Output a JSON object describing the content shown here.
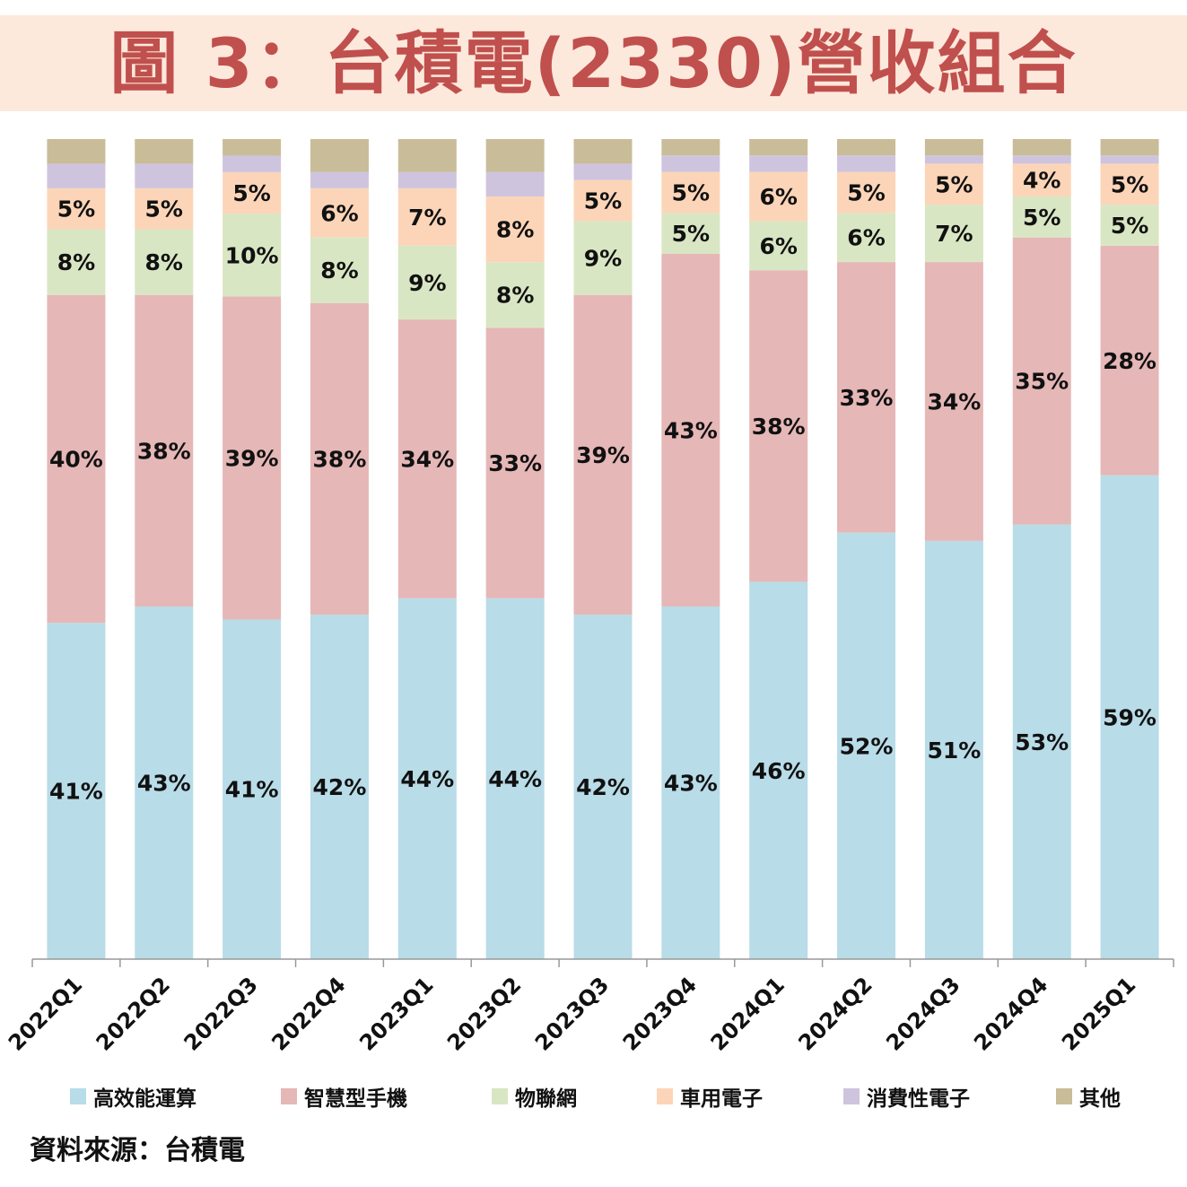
{
  "title": "圖 3：台積電(2330)營收組合",
  "source": "資料來源：台積電",
  "legend": [
    {
      "label": "高效能運算",
      "color": "#b8dce8"
    },
    {
      "label": "智慧型手機",
      "color": "#e6b7b7"
    },
    {
      "label": "物聯網",
      "color": "#d9e6c3"
    },
    {
      "label": "車用電子",
      "color": "#fcd5b8"
    },
    {
      "label": "消費性電子",
      "color": "#cfc4de"
    },
    {
      "label": "其他",
      "color": "#c9bc98"
    }
  ],
  "chart_data": {
    "type": "bar",
    "stacked": true,
    "percent_stacked": true,
    "categories": [
      "2022Q1",
      "2022Q2",
      "2022Q3",
      "2022Q4",
      "2023Q1",
      "2023Q2",
      "2023Q3",
      "2023Q4",
      "2024Q1",
      "2024Q2",
      "2024Q3",
      "2024Q4",
      "2025Q1"
    ],
    "ylim": [
      0,
      100
    ],
    "legend_position": "bottom",
    "series": [
      {
        "name": "高效能運算",
        "color": "#b8dce8",
        "values": [
          41,
          43,
          41,
          42,
          44,
          44,
          42,
          43,
          46,
          52,
          51,
          53,
          59
        ],
        "labels": [
          "41%",
          "43%",
          "41%",
          "42%",
          "44%",
          "44%",
          "42%",
          "43%",
          "46%",
          "52%",
          "51%",
          "53%",
          "59%"
        ]
      },
      {
        "name": "智慧型手機",
        "color": "#e6b7b7",
        "values": [
          40,
          38,
          39,
          38,
          34,
          33,
          39,
          43,
          38,
          33,
          34,
          35,
          28
        ],
        "labels": [
          "40%",
          "38%",
          "39%",
          "38%",
          "34%",
          "33%",
          "39%",
          "43%",
          "38%",
          "33%",
          "34%",
          "35%",
          "28%"
        ]
      },
      {
        "name": "物聯網",
        "color": "#d9e6c3",
        "values": [
          8,
          8,
          10,
          8,
          9,
          8,
          9,
          5,
          6,
          6,
          7,
          5,
          5
        ],
        "labels": [
          "8%",
          "8%",
          "10%",
          "8%",
          "9%",
          "8%",
          "9%",
          "5%",
          "6%",
          "6%",
          "7%",
          "5%",
          "5%"
        ]
      },
      {
        "name": "車用電子",
        "color": "#fcd5b8",
        "values": [
          5,
          5,
          5,
          6,
          7,
          8,
          5,
          5,
          6,
          5,
          5,
          4,
          5
        ],
        "labels": [
          "5%",
          "5%",
          "5%",
          "6%",
          "7%",
          "8%",
          "5%",
          "5%",
          "6%",
          "5%",
          "5%",
          "4%",
          "5%"
        ]
      },
      {
        "name": "消費性電子",
        "color": "#cfc4de",
        "values": [
          3,
          3,
          2,
          2,
          2,
          3,
          2,
          2,
          2,
          2,
          1,
          1,
          1
        ],
        "labels": [
          "",
          "",
          "",
          "",
          "",
          "",
          "",
          "",
          "",
          "",
          "",
          "",
          ""
        ]
      },
      {
        "name": "其他",
        "color": "#c9bc98",
        "values": [
          3,
          3,
          2,
          4,
          4,
          4,
          3,
          2,
          2,
          2,
          2,
          2,
          2
        ],
        "labels": [
          "",
          "",
          "",
          "",
          "",
          "",
          "",
          "",
          "",
          "",
          "",
          "",
          ""
        ]
      }
    ]
  }
}
